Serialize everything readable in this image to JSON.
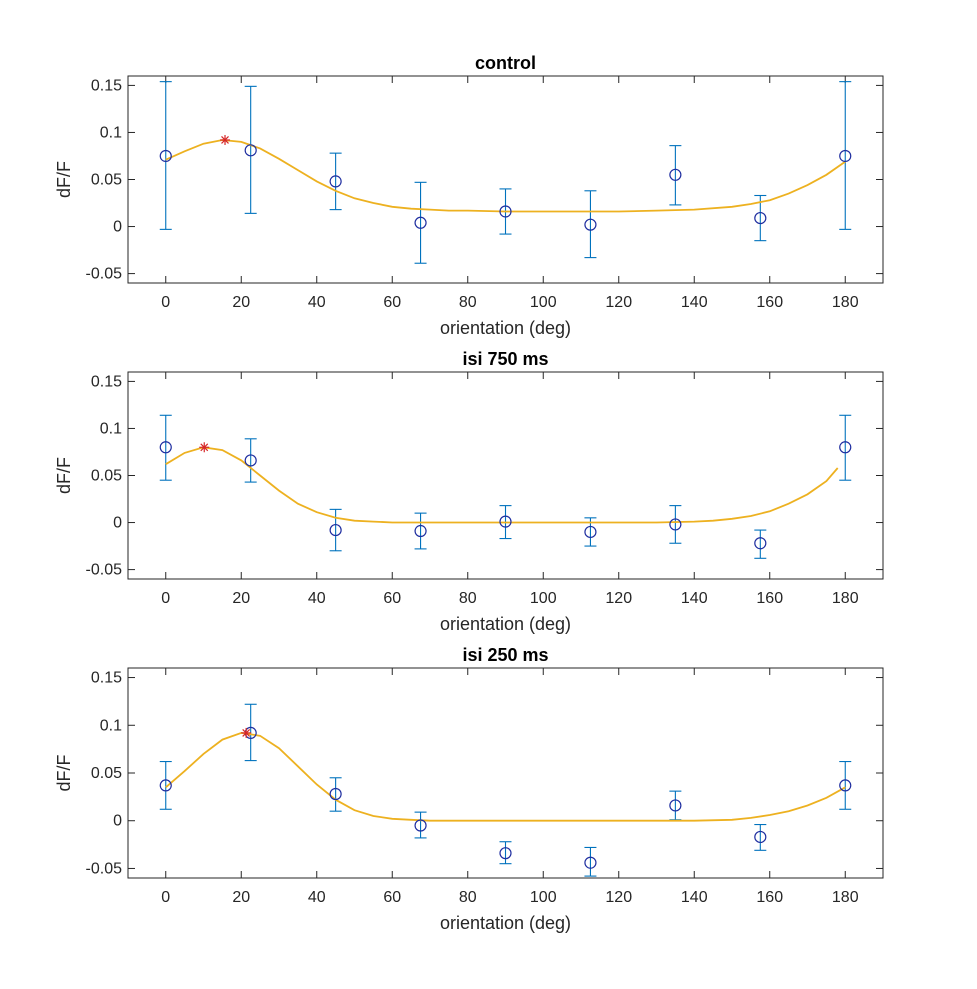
{
  "chart_data": [
    {
      "type": "scatter",
      "title": "control",
      "xlabel": "orientation (deg)",
      "ylabel": "dF/F",
      "xlim": [
        -10,
        190
      ],
      "ylim": [
        -0.06,
        0.16
      ],
      "xticks": [
        "0",
        "20",
        "40",
        "60",
        "80",
        "100",
        "120",
        "140",
        "160",
        "180"
      ],
      "yticks": [
        "-0.05",
        "0",
        "0.05",
        "0.1",
        "0.15"
      ],
      "grid": false,
      "series": [
        {
          "kind": "errorbar",
          "x": [
            0,
            22.5,
            45,
            67.5,
            90,
            112.5,
            135,
            157.5,
            180
          ],
          "y": [
            0.075,
            0.081,
            0.048,
            0.004,
            0.016,
            0.002,
            0.055,
            0.009,
            0.075
          ],
          "err_low": [
            -0.003,
            0.014,
            0.018,
            -0.039,
            -0.008,
            -0.033,
            0.023,
            -0.015,
            -0.003
          ],
          "err_high": [
            0.154,
            0.149,
            0.078,
            0.047,
            0.04,
            0.038,
            0.086,
            0.033,
            0.154
          ]
        },
        {
          "kind": "fit",
          "x": [
            0,
            5,
            10,
            15,
            20,
            25,
            30,
            35,
            40,
            45,
            50,
            55,
            60,
            65,
            70,
            75,
            80,
            90,
            100,
            110,
            120,
            130,
            140,
            150,
            155,
            160,
            165,
            170,
            175,
            180
          ],
          "y": [
            0.071,
            0.08,
            0.088,
            0.092,
            0.09,
            0.083,
            0.072,
            0.06,
            0.048,
            0.038,
            0.03,
            0.025,
            0.021,
            0.019,
            0.018,
            0.017,
            0.017,
            0.016,
            0.016,
            0.016,
            0.016,
            0.017,
            0.018,
            0.021,
            0.024,
            0.028,
            0.035,
            0.044,
            0.055,
            0.069
          ]
        },
        {
          "kind": "peak",
          "x": [
            15.7
          ],
          "y": [
            0.092
          ]
        }
      ]
    },
    {
      "type": "scatter",
      "title": "isi 750 ms",
      "xlabel": "orientation (deg)",
      "ylabel": "dF/F",
      "xlim": [
        -10,
        190
      ],
      "ylim": [
        -0.06,
        0.16
      ],
      "xticks": [
        "0",
        "20",
        "40",
        "60",
        "80",
        "100",
        "120",
        "140",
        "160",
        "180"
      ],
      "yticks": [
        "-0.05",
        "0",
        "0.05",
        "0.1",
        "0.15"
      ],
      "grid": false,
      "series": [
        {
          "kind": "errorbar",
          "x": [
            0,
            22.5,
            45,
            67.5,
            90,
            112.5,
            135,
            157.5,
            180
          ],
          "y": [
            0.08,
            0.066,
            -0.008,
            -0.009,
            0.001,
            -0.01,
            -0.002,
            -0.022,
            0.08
          ],
          "err_low": [
            0.045,
            0.043,
            -0.03,
            -0.028,
            -0.017,
            -0.025,
            -0.022,
            -0.038,
            0.045
          ],
          "err_high": [
            0.114,
            0.089,
            0.014,
            0.01,
            0.018,
            0.005,
            0.018,
            -0.008,
            0.114
          ]
        },
        {
          "kind": "fit",
          "x": [
            0,
            5,
            10,
            15,
            20,
            25,
            30,
            35,
            40,
            45,
            50,
            55,
            60,
            65,
            70,
            80,
            90,
            100,
            110,
            120,
            130,
            140,
            145,
            150,
            155,
            160,
            165,
            170,
            175,
            178
          ],
          "y": [
            0.062,
            0.074,
            0.08,
            0.077,
            0.066,
            0.05,
            0.034,
            0.02,
            0.011,
            0.005,
            0.002,
            0.001,
            0.0,
            0.0,
            0.0,
            0.0,
            0.0,
            0.0,
            0.0,
            0.0,
            0.0,
            0.001,
            0.002,
            0.004,
            0.007,
            0.012,
            0.02,
            0.03,
            0.044,
            0.058
          ]
        },
        {
          "kind": "peak",
          "x": [
            10.2
          ],
          "y": [
            0.08
          ]
        }
      ]
    },
    {
      "type": "scatter",
      "title": "isi 250 ms",
      "xlabel": "orientation (deg)",
      "ylabel": "dF/F",
      "xlim": [
        -10,
        190
      ],
      "ylim": [
        -0.06,
        0.16
      ],
      "xticks": [
        "0",
        "20",
        "40",
        "60",
        "80",
        "100",
        "120",
        "140",
        "160",
        "180"
      ],
      "yticks": [
        "-0.05",
        "0",
        "0.05",
        "0.1",
        "0.15"
      ],
      "grid": false,
      "series": [
        {
          "kind": "errorbar",
          "x": [
            0,
            22.5,
            45,
            67.5,
            90,
            112.5,
            135,
            157.5,
            180
          ],
          "y": [
            0.037,
            0.092,
            0.028,
            -0.005,
            -0.034,
            -0.044,
            0.016,
            -0.017,
            0.037
          ],
          "err_low": [
            0.012,
            0.063,
            0.01,
            -0.018,
            -0.045,
            -0.058,
            0.001,
            -0.031,
            0.012
          ],
          "err_high": [
            0.062,
            0.122,
            0.045,
            0.009,
            -0.022,
            -0.028,
            0.031,
            -0.004,
            0.062
          ]
        },
        {
          "kind": "fit",
          "x": [
            0,
            5,
            10,
            15,
            20,
            25,
            30,
            35,
            40,
            45,
            50,
            55,
            60,
            65,
            70,
            80,
            90,
            100,
            110,
            120,
            130,
            140,
            150,
            155,
            160,
            165,
            170,
            175,
            180
          ],
          "y": [
            0.035,
            0.052,
            0.07,
            0.085,
            0.092,
            0.089,
            0.076,
            0.057,
            0.038,
            0.022,
            0.011,
            0.005,
            0.002,
            0.001,
            0.0,
            0.0,
            0.0,
            0.0,
            0.0,
            0.0,
            0.0,
            0.0,
            0.001,
            0.003,
            0.006,
            0.01,
            0.016,
            0.024,
            0.035
          ]
        },
        {
          "kind": "peak",
          "x": [
            21.3
          ],
          "y": [
            0.092
          ]
        }
      ]
    }
  ],
  "colors": {
    "errorbar": "#0072BD",
    "marker": "#1f2ea0",
    "fit": "#EDB120",
    "peak": "#D62728",
    "axes": "#262626"
  }
}
